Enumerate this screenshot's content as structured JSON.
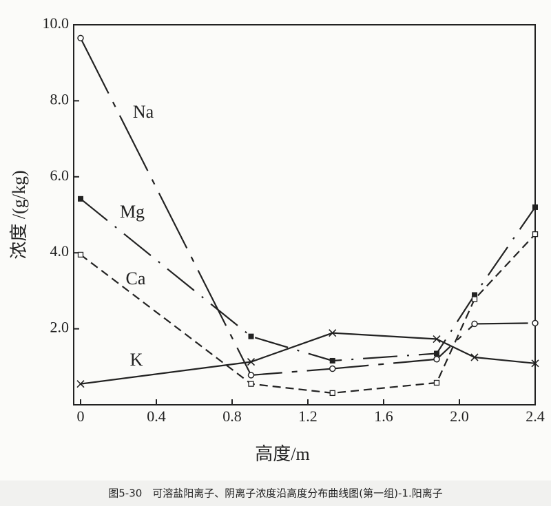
{
  "chart_data": {
    "type": "line",
    "title": "图5-30　可溶盐阳离子、阴离子浓度沿高度分布曲线图(第一组)-1.阳离子",
    "x_label": "高度/m",
    "y_label": "浓度 /(g/kg)",
    "x": [
      0,
      0.9,
      1.33,
      1.88,
      2.08,
      2.4
    ],
    "series": [
      {
        "name": "Na",
        "color": "#222222",
        "marker": "circle",
        "line_style": "longdash",
        "values": [
          9.65,
          0.78,
          0.95,
          1.2,
          2.13,
          2.15
        ]
      },
      {
        "name": "Mg",
        "color": "#222222",
        "marker": "filled-square",
        "line_style": "dashdot",
        "values": [
          5.42,
          1.8,
          1.16,
          1.35,
          2.89,
          5.2
        ]
      },
      {
        "name": "Ca",
        "color": "#222222",
        "marker": "open-square",
        "line_style": "dashed",
        "values": [
          3.95,
          0.55,
          0.31,
          0.58,
          2.78,
          4.49
        ]
      },
      {
        "name": "K",
        "color": "#222222",
        "marker": "cross",
        "line_style": "solid",
        "values": [
          0.55,
          1.13,
          1.89,
          1.73,
          1.25,
          1.09
        ]
      }
    ],
    "xlim": [
      0,
      2.4
    ],
    "xticks": [
      0,
      0.4,
      0.8,
      1.2,
      1.6,
      {
        "value": 2.0,
        "label": "2.0"
      },
      2.4
    ],
    "ylim": [
      0,
      10
    ],
    "yticks": [
      {
        "value": 2,
        "label": "2.0"
      },
      {
        "value": 4,
        "label": "4.0"
      },
      {
        "value": 6,
        "label": "6.0"
      },
      {
        "value": 8,
        "label": "8.0"
      },
      {
        "value": 10,
        "label": "10.0"
      }
    ],
    "grid": false
  }
}
